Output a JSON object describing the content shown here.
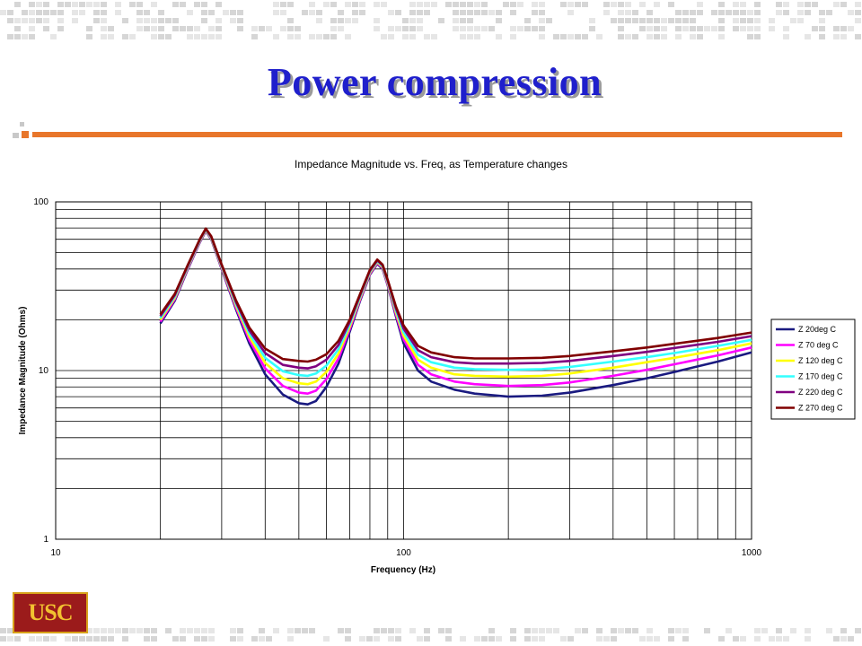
{
  "slide": {
    "title": "Power compression",
    "logo_text": "USC",
    "accent_color": "#e8762b",
    "title_color": "#1f1fcc"
  },
  "chart_data": {
    "type": "line",
    "title": "Impedance Magnitude vs. Freq, as Temperature changes",
    "xlabel": "Frequency (Hz)",
    "ylabel": "Impedance Magnitude (Ohms)",
    "xscale": "log",
    "yscale": "log",
    "xlim": [
      10,
      1000
    ],
    "ylim": [
      1,
      100
    ],
    "x_tick_labels": [
      "10",
      "100",
      "1000"
    ],
    "y_tick_labels": [
      "1",
      "10",
      "100"
    ],
    "grid": true,
    "legend_position": "right",
    "x": [
      20,
      22,
      24,
      26,
      27,
      28,
      30,
      33,
      36,
      40,
      45,
      50,
      53,
      56,
      60,
      65,
      70,
      75,
      80,
      84,
      87,
      90,
      95,
      100,
      110,
      120,
      140,
      160,
      200,
      250,
      300,
      400,
      500,
      600,
      800,
      1000
    ],
    "series": [
      {
        "name": "Z 20deg C",
        "color": "#1a1a80",
        "values": [
          19,
          26,
          40,
          58,
          67,
          60,
          40,
          23,
          14.5,
          9.5,
          7.2,
          6.4,
          6.3,
          6.6,
          8,
          11,
          17,
          26,
          37,
          43,
          40,
          32,
          21,
          14.5,
          10,
          8.6,
          7.7,
          7.3,
          7,
          7.1,
          7.4,
          8.2,
          9,
          9.8,
          11.3,
          12.8
        ]
      },
      {
        "name": "Z 70 deg C",
        "color": "#ff00ff",
        "values": [
          19.5,
          26.5,
          40.5,
          58.5,
          67.5,
          60.5,
          40.5,
          23.6,
          15.2,
          10.3,
          8.1,
          7.4,
          7.3,
          7.6,
          8.9,
          11.8,
          17.6,
          26.5,
          37.5,
          43.5,
          40.5,
          32.5,
          21.6,
          15.3,
          10.8,
          9.5,
          8.6,
          8.3,
          8.1,
          8.2,
          8.5,
          9.3,
          10.1,
          10.9,
          12.3,
          13.7
        ]
      },
      {
        "name": "Z 120 deg C",
        "color": "#ffff00",
        "values": [
          20,
          27,
          41,
          59,
          68,
          61,
          41,
          24.2,
          15.9,
          11.1,
          9,
          8.4,
          8.3,
          8.6,
          9.8,
          12.6,
          18.2,
          27,
          38,
          44,
          41,
          33,
          22.2,
          16.1,
          11.6,
          10.4,
          9.5,
          9.3,
          9.2,
          9.3,
          9.6,
          10.4,
          11.2,
          11.9,
          13.2,
          14.5
        ]
      },
      {
        "name": "Z 170 deg C",
        "color": "#33ffff",
        "values": [
          20.5,
          27.5,
          41.5,
          59.5,
          68.5,
          61.5,
          41.5,
          24.8,
          16.6,
          11.9,
          9.9,
          9.4,
          9.3,
          9.6,
          10.7,
          13.4,
          18.8,
          27.5,
          38.5,
          44.5,
          41.5,
          33.5,
          22.8,
          16.9,
          12.4,
          11.2,
          10.4,
          10.2,
          10.1,
          10.2,
          10.5,
          11.3,
          12,
          12.7,
          14,
          15.2
        ]
      },
      {
        "name": "Z 220 deg C",
        "color": "#800080",
        "values": [
          21,
          28,
          42,
          60,
          69,
          62,
          42,
          25.4,
          17.3,
          12.7,
          10.8,
          10.4,
          10.3,
          10.6,
          11.6,
          14.2,
          19.4,
          28,
          39,
          45,
          42,
          34,
          23.4,
          17.7,
          13.2,
          12,
          11.2,
          11,
          11,
          11.1,
          11.4,
          12.2,
          12.9,
          13.6,
          14.8,
          16
        ]
      },
      {
        "name": "Z 270 deg C",
        "color": "#800000",
        "values": [
          21.5,
          28.5,
          42.5,
          60.5,
          69.5,
          62.5,
          42.5,
          26,
          18,
          13.5,
          11.7,
          11.4,
          11.3,
          11.6,
          12.5,
          15,
          20,
          28.5,
          39.5,
          45.5,
          42.5,
          34.5,
          24,
          18.5,
          14,
          12.8,
          12,
          11.8,
          11.8,
          11.9,
          12.2,
          13,
          13.7,
          14.4,
          15.6,
          16.8
        ]
      }
    ]
  }
}
